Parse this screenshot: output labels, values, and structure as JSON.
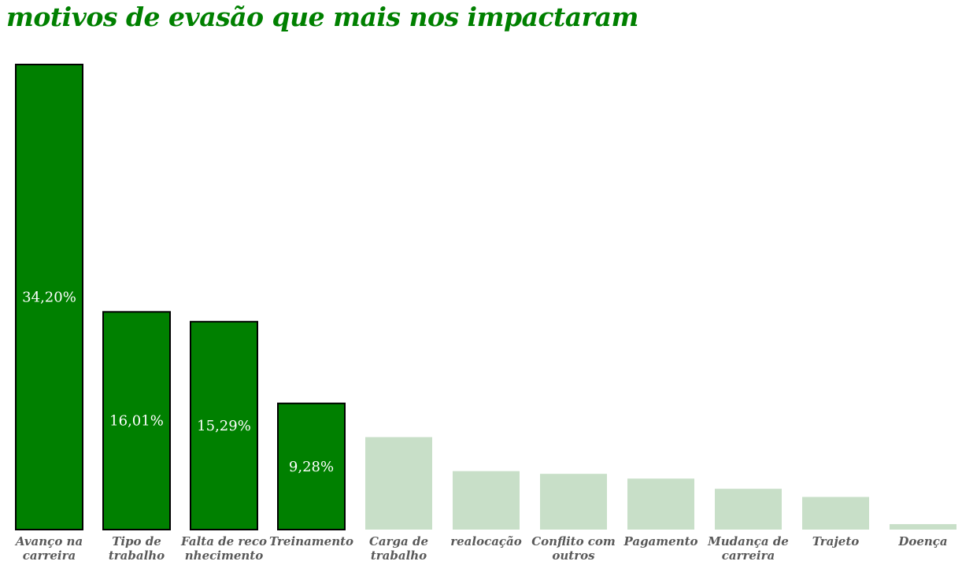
{
  "chart_data": {
    "type": "bar",
    "title": "motivos de evasão que mais nos impactaram",
    "categories": [
      [
        "Avanço na",
        "carreira"
      ],
      [
        "Tipo de",
        "trabalho"
      ],
      [
        "Falta de reco",
        "nhecimento"
      ],
      [
        "Treinamento"
      ],
      [
        "Carga de",
        "trabalho"
      ],
      [
        "realocação"
      ],
      [
        "Conflito com",
        "outros"
      ],
      [
        "Pagamento"
      ],
      [
        "Mudança de",
        "carreira"
      ],
      [
        "Trajeto"
      ],
      [
        "Doença"
      ]
    ],
    "values": [
      34.2,
      16.01,
      15.29,
      9.28,
      6.8,
      4.3,
      4.1,
      3.75,
      3.0,
      2.4,
      0.4
    ],
    "data_labels": [
      "34,20%",
      "16,01%",
      "15,29%",
      "9,28%",
      "",
      "",
      "",
      "",
      "",
      "",
      ""
    ],
    "highlighted": [
      true,
      true,
      true,
      true,
      false,
      false,
      false,
      false,
      false,
      false,
      false
    ],
    "colors": {
      "highlight": "#008000",
      "highlight_border": "#000000",
      "muted": "#c8dfc8",
      "title": "#008000",
      "category_text": "#595959",
      "value_text": "#ffffff"
    },
    "ylim": [
      0,
      34.2
    ],
    "grid": false,
    "legend": "none",
    "xlabel": "",
    "ylabel": ""
  }
}
